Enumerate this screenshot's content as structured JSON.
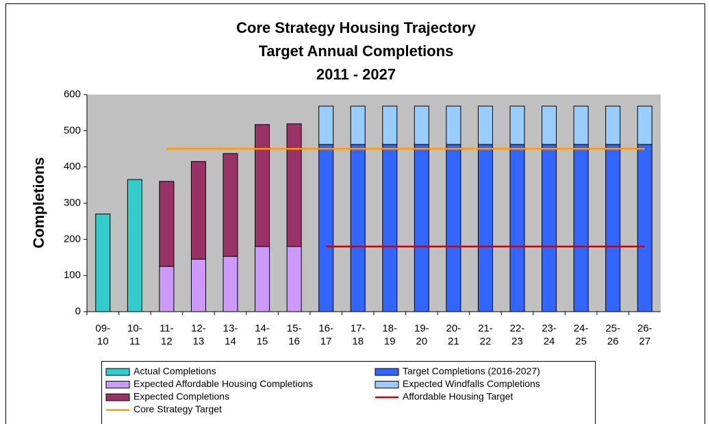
{
  "chart_data": {
    "type": "bar",
    "title": [
      "Core Strategy Housing Trajectory",
      "Target Annual Completions",
      "2011 - 2027"
    ],
    "y_label": "Completions",
    "categories": [
      "09-\n10",
      "10-\n11",
      "11-\n12",
      "12-\n13",
      "13-\n14",
      "14-\n15",
      "15-\n16",
      "16-\n17",
      "17-\n18",
      "18-\n19",
      "19-\n20",
      "20-\n21",
      "21-\n22",
      "22-\n23",
      "23-\n24",
      "24-\n25",
      "25-\n26",
      "26-\n27"
    ],
    "series": [
      {
        "name": "Actual Completions",
        "type": "bar",
        "color": "#33CCCC",
        "values": [
          270,
          365,
          null,
          null,
          null,
          null,
          null,
          null,
          null,
          null,
          null,
          null,
          null,
          null,
          null,
          null,
          null,
          null
        ]
      },
      {
        "name": "Target Completions (2016-2027)",
        "type": "bar",
        "color": "#3366FF",
        "values": [
          null,
          null,
          null,
          null,
          null,
          null,
          null,
          462,
          462,
          462,
          462,
          462,
          462,
          462,
          462,
          462,
          462,
          462
        ]
      },
      {
        "name": "Expected Affordable Housing Completions",
        "type": "bar",
        "color": "#CC99FF",
        "values": [
          null,
          null,
          125,
          145,
          153,
          180,
          180,
          null,
          null,
          null,
          null,
          null,
          null,
          null,
          null,
          null,
          null,
          null
        ]
      },
      {
        "name": "Expected Windfalls Completions",
        "type": "bar",
        "color": "#99CCFF",
        "values": [
          null,
          null,
          null,
          null,
          null,
          null,
          null,
          106,
          106,
          106,
          106,
          106,
          106,
          106,
          106,
          106,
          106,
          106
        ]
      },
      {
        "name": "Expected Completions",
        "type": "bar",
        "color": "#993366",
        "values": [
          null,
          null,
          235,
          270,
          284,
          337,
          339,
          null,
          null,
          null,
          null,
          null,
          null,
          null,
          null,
          null,
          null,
          null
        ]
      },
      {
        "name": "Affordable Housing Target",
        "type": "line",
        "color": "#CC0000",
        "values": [
          null,
          null,
          null,
          null,
          null,
          null,
          null,
          180,
          180,
          180,
          180,
          180,
          180,
          180,
          180,
          180,
          180,
          180
        ]
      },
      {
        "name": "Core Strategy Target",
        "type": "line",
        "color": "#FF9900",
        "values": [
          null,
          null,
          450,
          450,
          450,
          450,
          450,
          450,
          450,
          450,
          450,
          450,
          450,
          450,
          450,
          450,
          450,
          450
        ]
      }
    ],
    "ylim": [
      0,
      600
    ],
    "yticks": [
      0,
      100,
      200,
      300,
      400,
      500,
      600
    ],
    "stacked": true
  }
}
